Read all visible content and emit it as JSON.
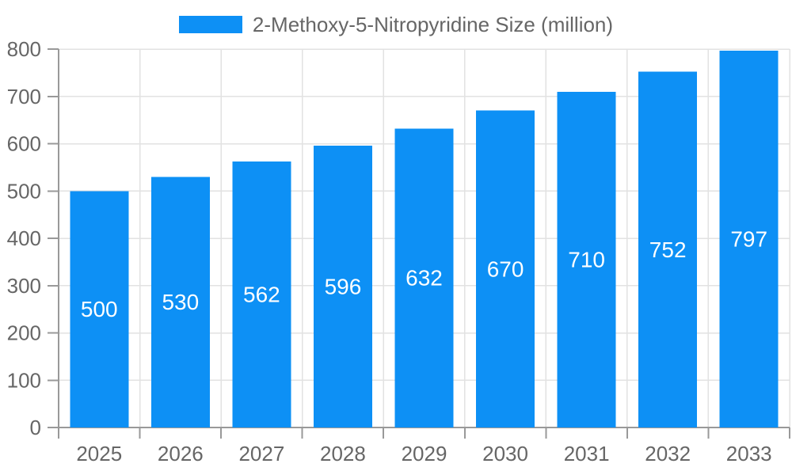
{
  "legend": {
    "label": "2-Methoxy-5-Nitropyridine Size (million)"
  },
  "colors": {
    "bar": "#0D90F5",
    "axis_line": "#999999",
    "grid_line": "#E2E2E2",
    "tick_text": "#666666",
    "legend_text": "#666666",
    "value_label_text": "#FFFFFF",
    "background": "#FFFFFF"
  },
  "chart_data": {
    "type": "bar",
    "title": "2-Methoxy-5-Nitropyridine Size (million)",
    "categories": [
      "2025",
      "2026",
      "2027",
      "2028",
      "2029",
      "2030",
      "2031",
      "2032",
      "2033"
    ],
    "values": [
      500,
      530,
      562,
      596,
      632,
      670,
      710,
      752,
      797
    ],
    "xlabel": "",
    "ylabel": "",
    "ylim": [
      0,
      800
    ],
    "ytick_step": 100,
    "ytick_labels": [
      "0",
      "100",
      "200",
      "300",
      "400",
      "500",
      "600",
      "700",
      "800"
    ],
    "grid": true,
    "legend_position": "top-center",
    "value_labels": "inside-center"
  }
}
